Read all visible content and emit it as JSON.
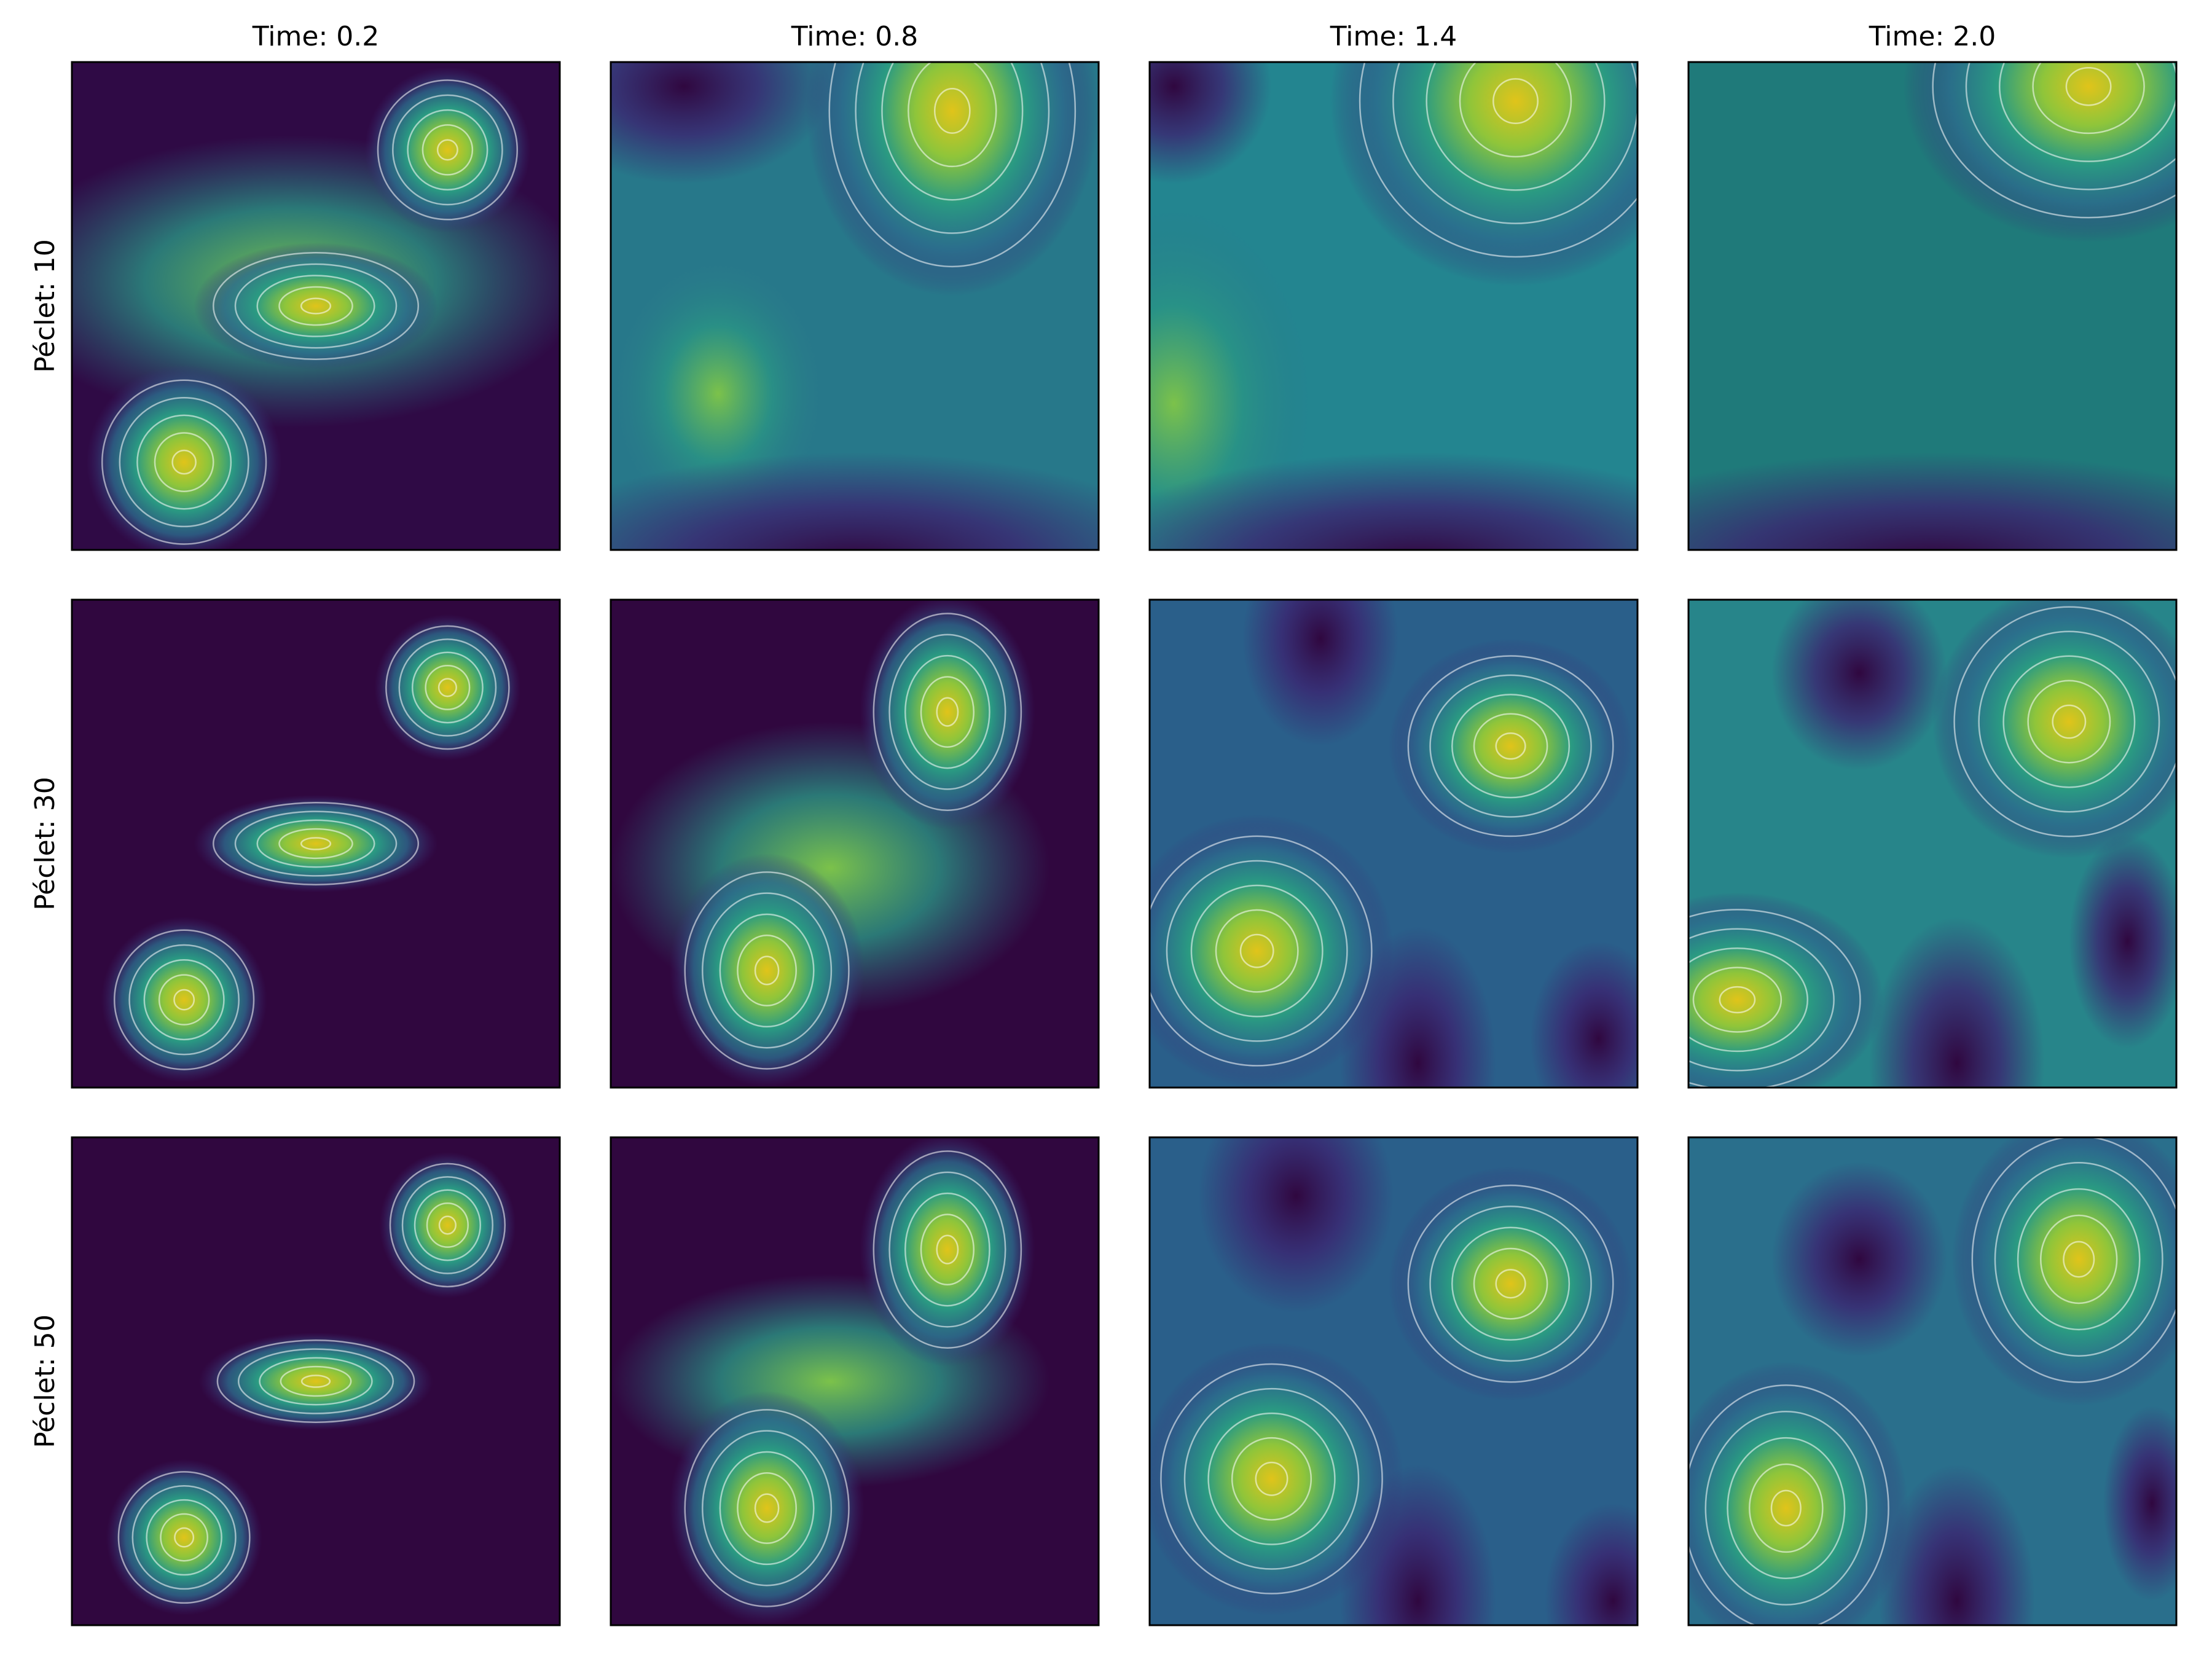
{
  "columns": [
    "Time: 0.2",
    "Time: 0.8",
    "Time: 1.4",
    "Time: 2.0"
  ],
  "rows": [
    "Péclet: 10",
    "Péclet: 30",
    "Péclet: 50"
  ]
}
